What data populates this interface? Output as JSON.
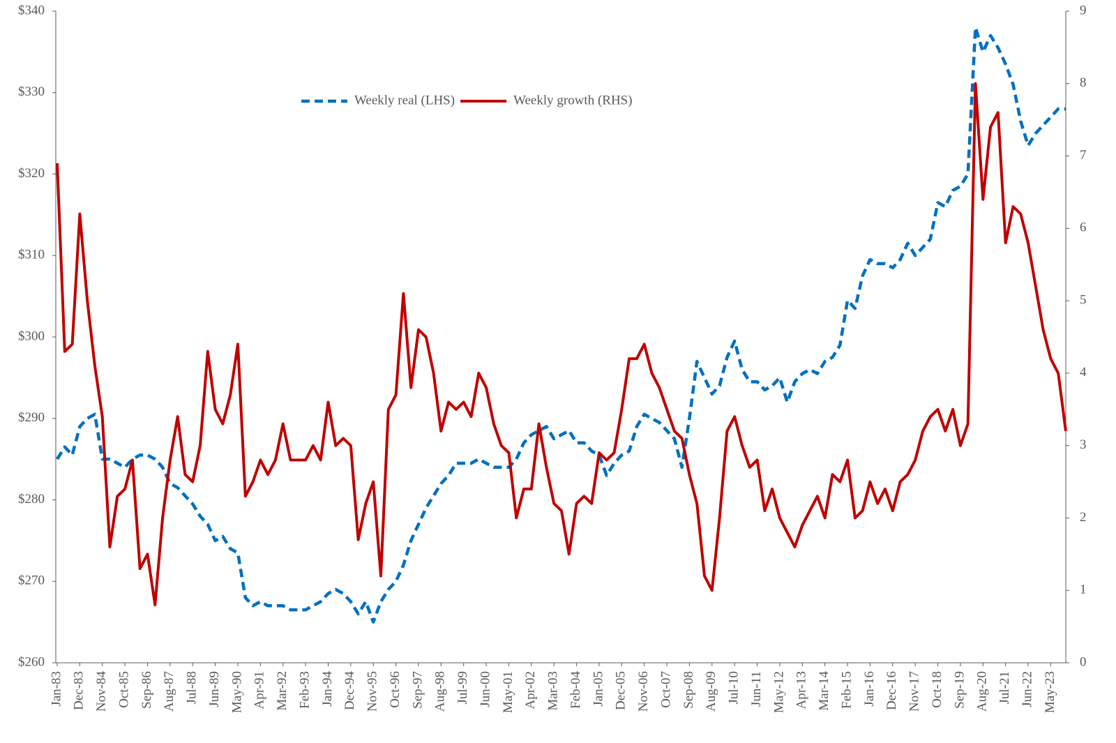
{
  "chart_data": {
    "type": "line",
    "categories": [
      "Jan-83",
      null,
      null,
      "Dec-83",
      null,
      null,
      "Nov-84",
      null,
      null,
      "Oct-85",
      null,
      null,
      "Sep-86",
      null,
      null,
      "Aug-87",
      null,
      null,
      "Jul-88",
      null,
      null,
      "Jun-89",
      null,
      null,
      "May-90",
      null,
      null,
      "Apr-91",
      null,
      null,
      "Mar-92",
      null,
      null,
      "Feb-93",
      null,
      null,
      "Jan-94",
      null,
      null,
      "Dec-94",
      null,
      null,
      "Nov-95",
      null,
      null,
      "Oct-96",
      null,
      null,
      "Sep-97",
      null,
      null,
      "Aug-98",
      null,
      null,
      "Jul-99",
      null,
      null,
      "Jun-00",
      null,
      null,
      "May-01",
      null,
      null,
      "Apr-02",
      null,
      null,
      "Mar-03",
      null,
      null,
      "Feb-04",
      null,
      null,
      "Jan-05",
      null,
      null,
      "Dec-05",
      null,
      null,
      "Nov-06",
      null,
      null,
      "Oct-07",
      null,
      null,
      "Sep-08",
      null,
      null,
      "Aug-09",
      null,
      null,
      "Jul-10",
      null,
      null,
      "Jun-11",
      null,
      null,
      "May-12",
      null,
      null,
      "Apr-13",
      null,
      null,
      "Mar-14",
      null,
      null,
      "Feb-15",
      null,
      null,
      "Jan-16",
      null,
      null,
      "Dec-16",
      null,
      null,
      "Nov-17",
      null,
      null,
      "Oct-18",
      null,
      null,
      "Sep-19",
      null,
      null,
      "Aug-20",
      null,
      null,
      "Jul-21",
      null,
      null,
      "Jun-22",
      null,
      null,
      "May-23",
      null,
      null
    ],
    "series": [
      {
        "name": "Weekly real (LHS)",
        "color": "#0070c0",
        "dashed": true,
        "values": [
          285,
          286.5,
          285.5,
          289,
          290,
          290.5,
          285,
          285,
          284.5,
          284,
          285,
          285.5,
          285.5,
          285,
          284,
          282,
          281.5,
          280.5,
          279.5,
          278,
          277,
          275,
          275.5,
          274,
          273.5,
          268,
          267,
          267.5,
          267,
          267,
          267,
          266.5,
          266.5,
          266.5,
          267,
          267.5,
          268.5,
          269,
          268.5,
          267.5,
          266,
          267.5,
          265,
          267.5,
          269,
          270,
          272,
          275,
          277,
          279,
          280.5,
          282,
          283,
          284.5,
          284.5,
          284.5,
          285,
          284.5,
          284,
          284,
          284,
          285,
          287,
          288,
          288.5,
          289,
          287.5,
          288,
          288.5,
          287,
          287,
          286,
          285.5,
          283,
          284.5,
          285.5,
          286,
          289,
          290.5,
          290,
          289.5,
          288.5,
          287.5,
          284,
          290,
          297,
          295,
          293,
          294,
          297.5,
          299.5,
          296,
          294.5,
          294.5,
          293.5,
          294,
          295,
          292,
          294.5,
          295.5,
          296,
          295.5,
          297,
          297.5,
          299,
          304.5,
          303.5,
          307.5,
          309.5,
          309,
          309,
          308.5,
          309.5,
          311.5,
          310,
          311,
          312,
          316.5,
          316,
          318,
          318.5,
          320,
          338,
          335,
          337,
          335.5,
          333.5,
          331,
          326.5,
          323.5,
          325,
          326,
          327,
          328,
          328
        ]
      },
      {
        "name": "Weekly growth (RHS)",
        "color": "#c00000",
        "axis": "y2",
        "dashed": false,
        "values": [
          6.9,
          4.3,
          4.4,
          6.2,
          5.0,
          4.1,
          3.4,
          1.6,
          2.3,
          2.4,
          2.8,
          1.3,
          1.5,
          0.8,
          2.0,
          2.8,
          3.4,
          2.6,
          2.5,
          3.0,
          4.3,
          3.5,
          3.3,
          3.7,
          4.4,
          2.3,
          2.5,
          2.8,
          2.6,
          2.8,
          3.3,
          2.8,
          2.8,
          2.8,
          3.0,
          2.8,
          3.6,
          3.0,
          3.1,
          3.0,
          1.7,
          2.2,
          2.5,
          1.2,
          3.5,
          3.7,
          5.1,
          3.8,
          4.6,
          4.5,
          4.0,
          3.2,
          3.6,
          3.5,
          3.6,
          3.4,
          4.0,
          3.8,
          3.3,
          3.0,
          2.9,
          2.0,
          2.4,
          2.4,
          3.3,
          2.7,
          2.2,
          2.1,
          1.5,
          2.2,
          2.3,
          2.2,
          2.9,
          2.8,
          2.9,
          3.5,
          4.2,
          4.2,
          4.4,
          4.0,
          3.8,
          3.5,
          3.2,
          3.1,
          2.6,
          2.2,
          1.2,
          1.0,
          2.0,
          3.2,
          3.4,
          3.0,
          2.7,
          2.8,
          2.1,
          2.4,
          2.0,
          1.8,
          1.6,
          1.9,
          2.1,
          2.3,
          2.0,
          2.6,
          2.5,
          2.8,
          2.0,
          2.1,
          2.5,
          2.2,
          2.4,
          2.1,
          2.5,
          2.6,
          2.8,
          3.2,
          3.4,
          3.5,
          3.2,
          3.5,
          3.0,
          3.3,
          8.0,
          6.4,
          7.4,
          7.6,
          5.8,
          6.3,
          6.2,
          5.8,
          5.2,
          4.6,
          4.2,
          4.0,
          3.2
        ]
      }
    ],
    "ylim": [
      260,
      340
    ],
    "yticks": [
      {
        "value": 260,
        "label": "$260"
      },
      {
        "value": 270,
        "label": "$270"
      },
      {
        "value": 280,
        "label": "$280"
      },
      {
        "value": 290,
        "label": "$290"
      },
      {
        "value": 300,
        "label": "$300"
      },
      {
        "value": 310,
        "label": "$310"
      },
      {
        "value": 320,
        "label": "$320"
      },
      {
        "value": 330,
        "label": "$330"
      },
      {
        "value": 340,
        "label": "$340"
      }
    ],
    "y2lim": [
      0,
      9
    ],
    "y2ticks": [
      0,
      1,
      2,
      3,
      4,
      5,
      6,
      7,
      8,
      9
    ],
    "grid": false,
    "legend": "top"
  }
}
